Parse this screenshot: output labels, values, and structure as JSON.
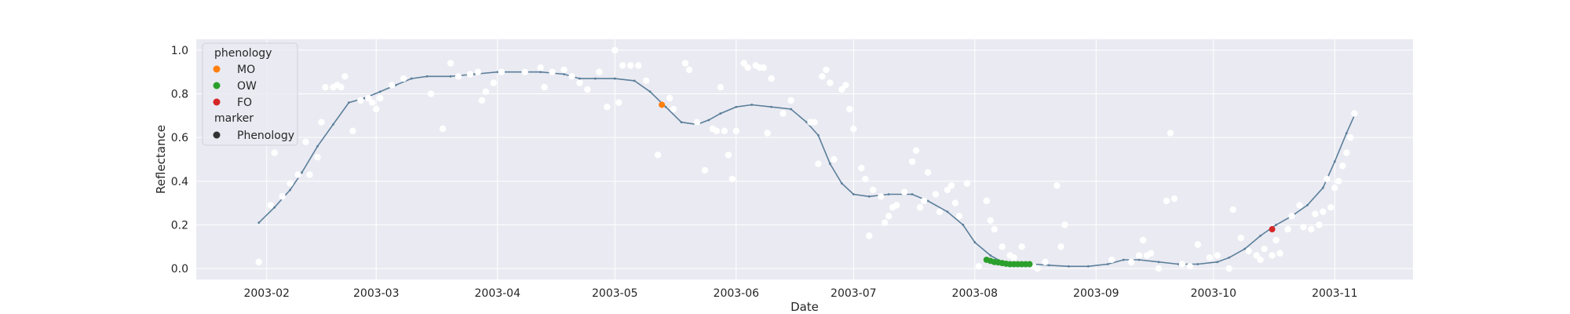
{
  "chart_data": {
    "type": "scatter",
    "title": "",
    "xlabel": "Date",
    "ylabel": "Reflectance",
    "xlim": [
      "2003-01-14",
      "2003-11-21"
    ],
    "ylim": [
      -0.05,
      1.05
    ],
    "x_ticks": [
      "2003-02-01",
      "2003-03-01",
      "2003-04-01",
      "2003-05-01",
      "2003-06-01",
      "2003-07-01",
      "2003-08-01",
      "2003-09-01",
      "2003-10-01",
      "2003-11-01"
    ],
    "x_tick_labels": [
      "2003-02",
      "2003-03",
      "2003-04",
      "2003-05",
      "2003-06",
      "2003-07",
      "2003-08",
      "2003-09",
      "2003-10",
      "2003-11"
    ],
    "y_ticks": [
      0.0,
      0.2,
      0.4,
      0.6,
      0.8,
      1.0
    ],
    "y_tick_labels": [
      "0.0",
      "0.2",
      "0.4",
      "0.6",
      "0.8",
      "1.0"
    ],
    "grid": true,
    "legend_placement": "top-left",
    "colors": {
      "background": "#eaeaf2",
      "grid": "#ffffff",
      "curve": "#5b7f9a",
      "observations": "#ffffff",
      "MO": "#ff7f0e",
      "OW": "#2ca02c",
      "FO": "#d62728",
      "marker": "#333333"
    },
    "legend": {
      "hue_title": "phenology",
      "hue_entries": [
        "MO",
        "OW",
        "FO"
      ],
      "style_title": "marker",
      "style_entries": [
        "Phenology"
      ]
    },
    "fitted_curve": {
      "name": "",
      "points": [
        [
          "2003-01-30",
          0.21
        ],
        [
          "2003-02-03",
          0.28
        ],
        [
          "2003-02-07",
          0.36
        ],
        [
          "2003-02-10",
          0.44
        ],
        [
          "2003-02-14",
          0.56
        ],
        [
          "2003-02-18",
          0.66
        ],
        [
          "2003-02-22",
          0.76
        ],
        [
          "2003-02-26",
          0.78
        ],
        [
          "2003-03-02",
          0.81
        ],
        [
          "2003-03-06",
          0.84
        ],
        [
          "2003-03-10",
          0.87
        ],
        [
          "2003-03-14",
          0.88
        ],
        [
          "2003-03-20",
          0.88
        ],
        [
          "2003-03-26",
          0.89
        ],
        [
          "2003-04-01",
          0.9
        ],
        [
          "2003-04-08",
          0.9
        ],
        [
          "2003-04-12",
          0.9
        ],
        [
          "2003-04-18",
          0.89
        ],
        [
          "2003-04-22",
          0.87
        ],
        [
          "2003-04-26",
          0.87
        ],
        [
          "2003-05-01",
          0.87
        ],
        [
          "2003-05-06",
          0.86
        ],
        [
          "2003-05-10",
          0.81
        ],
        [
          "2003-05-14",
          0.74
        ],
        [
          "2003-05-18",
          0.67
        ],
        [
          "2003-05-22",
          0.66
        ],
        [
          "2003-05-25",
          0.68
        ],
        [
          "2003-05-28",
          0.71
        ],
        [
          "2003-06-01",
          0.74
        ],
        [
          "2003-06-05",
          0.75
        ],
        [
          "2003-06-10",
          0.74
        ],
        [
          "2003-06-15",
          0.73
        ],
        [
          "2003-06-19",
          0.67
        ],
        [
          "2003-06-22",
          0.61
        ],
        [
          "2003-06-25",
          0.48
        ],
        [
          "2003-06-28",
          0.39
        ],
        [
          "2003-07-01",
          0.34
        ],
        [
          "2003-07-05",
          0.33
        ],
        [
          "2003-07-10",
          0.34
        ],
        [
          "2003-07-16",
          0.34
        ],
        [
          "2003-07-20",
          0.31
        ],
        [
          "2003-07-25",
          0.26
        ],
        [
          "2003-07-29",
          0.2
        ],
        [
          "2003-08-01",
          0.12
        ],
        [
          "2003-08-05",
          0.06
        ],
        [
          "2003-08-08",
          0.03
        ],
        [
          "2003-08-12",
          0.02
        ],
        [
          "2003-08-16",
          0.02
        ],
        [
          "2003-08-20",
          0.015
        ],
        [
          "2003-08-25",
          0.01
        ],
        [
          "2003-08-30",
          0.01
        ],
        [
          "2003-09-04",
          0.02
        ],
        [
          "2003-09-08",
          0.04
        ],
        [
          "2003-09-12",
          0.04
        ],
        [
          "2003-09-17",
          0.03
        ],
        [
          "2003-09-22",
          0.02
        ],
        [
          "2003-09-27",
          0.02
        ],
        [
          "2003-10-02",
          0.03
        ],
        [
          "2003-10-05",
          0.05
        ],
        [
          "2003-10-09",
          0.09
        ],
        [
          "2003-10-13",
          0.15
        ],
        [
          "2003-10-17",
          0.2
        ],
        [
          "2003-10-21",
          0.24
        ],
        [
          "2003-10-25",
          0.29
        ],
        [
          "2003-10-29",
          0.37
        ],
        [
          "2003-11-01",
          0.49
        ],
        [
          "2003-11-04",
          0.62
        ],
        [
          "2003-11-06",
          0.7
        ]
      ]
    },
    "observations": {
      "name": "",
      "points": [
        [
          "2003-01-30",
          0.03
        ],
        [
          "2003-02-02",
          0.29
        ],
        [
          "2003-02-03",
          0.53
        ],
        [
          "2003-02-05",
          0.33
        ],
        [
          "2003-02-07",
          0.39
        ],
        [
          "2003-02-09",
          0.43
        ],
        [
          "2003-02-11",
          0.58
        ],
        [
          "2003-02-12",
          0.43
        ],
        [
          "2003-02-14",
          0.51
        ],
        [
          "2003-02-15",
          0.67
        ],
        [
          "2003-02-16",
          0.83
        ],
        [
          "2003-02-18",
          0.83
        ],
        [
          "2003-02-19",
          0.84
        ],
        [
          "2003-02-20",
          0.83
        ],
        [
          "2003-02-21",
          0.88
        ],
        [
          "2003-02-23",
          0.63
        ],
        [
          "2003-02-25",
          0.77
        ],
        [
          "2003-02-27",
          0.78
        ],
        [
          "2003-02-28",
          0.76
        ],
        [
          "2003-03-01",
          0.73
        ],
        [
          "2003-03-02",
          0.78
        ],
        [
          "2003-03-05",
          0.84
        ],
        [
          "2003-03-08",
          0.87
        ],
        [
          "2003-03-15",
          0.8
        ],
        [
          "2003-03-18",
          0.64
        ],
        [
          "2003-03-20",
          0.94
        ],
        [
          "2003-03-22",
          0.88
        ],
        [
          "2003-03-25",
          0.89
        ],
        [
          "2003-03-27",
          0.9
        ],
        [
          "2003-03-28",
          0.77
        ],
        [
          "2003-03-29",
          0.81
        ],
        [
          "2003-03-31",
          0.85
        ],
        [
          "2003-04-02",
          0.9
        ],
        [
          "2003-04-08",
          0.9
        ],
        [
          "2003-04-12",
          0.92
        ],
        [
          "2003-04-13",
          0.83
        ],
        [
          "2003-04-15",
          0.9
        ],
        [
          "2003-04-18",
          0.91
        ],
        [
          "2003-04-20",
          0.88
        ],
        [
          "2003-04-22",
          0.85
        ],
        [
          "2003-04-24",
          0.82
        ],
        [
          "2003-04-27",
          0.9
        ],
        [
          "2003-04-29",
          0.74
        ],
        [
          "2003-05-01",
          1.0
        ],
        [
          "2003-05-02",
          0.76
        ],
        [
          "2003-05-03",
          0.93
        ],
        [
          "2003-05-05",
          0.93
        ],
        [
          "2003-05-07",
          0.93
        ],
        [
          "2003-05-09",
          0.86
        ],
        [
          "2003-05-12",
          0.52
        ],
        [
          "2003-05-15",
          0.78
        ],
        [
          "2003-05-16",
          0.73
        ],
        [
          "2003-05-19",
          0.94
        ],
        [
          "2003-05-20",
          0.91
        ],
        [
          "2003-05-22",
          0.67
        ],
        [
          "2003-05-24",
          0.45
        ],
        [
          "2003-05-26",
          0.64
        ],
        [
          "2003-05-27",
          0.63
        ],
        [
          "2003-05-28",
          0.83
        ],
        [
          "2003-05-29",
          0.63
        ],
        [
          "2003-05-30",
          0.52
        ],
        [
          "2003-05-31",
          0.41
        ],
        [
          "2003-06-01",
          0.63
        ],
        [
          "2003-06-03",
          0.94
        ],
        [
          "2003-06-04",
          0.92
        ],
        [
          "2003-06-06",
          0.93
        ],
        [
          "2003-06-07",
          0.92
        ],
        [
          "2003-06-08",
          0.92
        ],
        [
          "2003-06-09",
          0.62
        ],
        [
          "2003-06-10",
          0.87
        ],
        [
          "2003-06-13",
          0.71
        ],
        [
          "2003-06-15",
          0.77
        ],
        [
          "2003-06-20",
          0.67
        ],
        [
          "2003-06-21",
          0.67
        ],
        [
          "2003-06-22",
          0.48
        ],
        [
          "2003-06-23",
          0.88
        ],
        [
          "2003-06-24",
          0.91
        ],
        [
          "2003-06-25",
          0.85
        ],
        [
          "2003-06-26",
          0.5
        ],
        [
          "2003-06-28",
          0.82
        ],
        [
          "2003-06-29",
          0.84
        ],
        [
          "2003-06-30",
          0.73
        ],
        [
          "2003-07-01",
          0.64
        ],
        [
          "2003-07-03",
          0.46
        ],
        [
          "2003-07-04",
          0.41
        ],
        [
          "2003-07-05",
          0.15
        ],
        [
          "2003-07-06",
          0.36
        ],
        [
          "2003-07-08",
          0.33
        ],
        [
          "2003-07-09",
          0.21
        ],
        [
          "2003-07-10",
          0.24
        ],
        [
          "2003-07-11",
          0.28
        ],
        [
          "2003-07-12",
          0.29
        ],
        [
          "2003-07-14",
          0.35
        ],
        [
          "2003-07-16",
          0.49
        ],
        [
          "2003-07-17",
          0.54
        ],
        [
          "2003-07-18",
          0.28
        ],
        [
          "2003-07-19",
          0.31
        ],
        [
          "2003-07-20",
          0.44
        ],
        [
          "2003-07-22",
          0.34
        ],
        [
          "2003-07-23",
          0.26
        ],
        [
          "2003-07-25",
          0.36
        ],
        [
          "2003-07-26",
          0.38
        ],
        [
          "2003-07-27",
          0.3
        ],
        [
          "2003-07-28",
          0.24
        ],
        [
          "2003-07-30",
          0.39
        ],
        [
          "2003-08-02",
          0.01
        ],
        [
          "2003-08-04",
          0.31
        ],
        [
          "2003-08-05",
          0.22
        ],
        [
          "2003-08-06",
          0.18
        ],
        [
          "2003-08-08",
          0.1
        ],
        [
          "2003-08-10",
          0.06
        ],
        [
          "2003-08-11",
          0.05
        ],
        [
          "2003-08-13",
          0.1
        ],
        [
          "2003-08-16",
          0.01
        ],
        [
          "2003-08-17",
          0.0
        ],
        [
          "2003-08-19",
          0.03
        ],
        [
          "2003-08-22",
          0.38
        ],
        [
          "2003-08-23",
          0.1
        ],
        [
          "2003-08-24",
          0.2
        ],
        [
          "2003-09-05",
          0.04
        ],
        [
          "2003-09-10",
          0.03
        ],
        [
          "2003-09-12",
          0.06
        ],
        [
          "2003-09-13",
          0.13
        ],
        [
          "2003-09-14",
          0.06
        ],
        [
          "2003-09-15",
          0.07
        ],
        [
          "2003-09-17",
          0.0
        ],
        [
          "2003-09-19",
          0.31
        ],
        [
          "2003-09-20",
          0.62
        ],
        [
          "2003-09-21",
          0.32
        ],
        [
          "2003-09-23",
          0.02
        ],
        [
          "2003-09-25",
          0.01
        ],
        [
          "2003-09-27",
          0.11
        ],
        [
          "2003-09-30",
          0.05
        ],
        [
          "2003-10-02",
          0.06
        ],
        [
          "2003-10-05",
          0.0
        ],
        [
          "2003-10-06",
          0.27
        ],
        [
          "2003-10-08",
          0.14
        ],
        [
          "2003-10-10",
          0.08
        ],
        [
          "2003-10-12",
          0.06
        ],
        [
          "2003-10-13",
          0.04
        ],
        [
          "2003-10-14",
          0.09
        ],
        [
          "2003-10-16",
          0.06
        ],
        [
          "2003-10-17",
          0.13
        ],
        [
          "2003-10-18",
          0.07
        ],
        [
          "2003-10-20",
          0.18
        ],
        [
          "2003-10-21",
          0.24
        ],
        [
          "2003-10-23",
          0.29
        ],
        [
          "2003-10-24",
          0.19
        ],
        [
          "2003-10-26",
          0.18
        ],
        [
          "2003-10-27",
          0.25
        ],
        [
          "2003-10-28",
          0.2
        ],
        [
          "2003-10-29",
          0.26
        ],
        [
          "2003-10-30",
          0.41
        ],
        [
          "2003-10-31",
          0.28
        ],
        [
          "2003-11-01",
          0.37
        ],
        [
          "2003-11-02",
          0.4
        ],
        [
          "2003-11-03",
          0.47
        ],
        [
          "2003-11-04",
          0.53
        ],
        [
          "2003-11-05",
          0.6
        ],
        [
          "2003-11-06",
          0.71
        ]
      ]
    },
    "phenology": {
      "MO": [
        [
          "2003-05-13",
          0.75
        ]
      ],
      "OW": [
        [
          "2003-08-04",
          0.04
        ],
        [
          "2003-08-05",
          0.035
        ],
        [
          "2003-08-06",
          0.03
        ],
        [
          "2003-08-07",
          0.028
        ],
        [
          "2003-08-08",
          0.025
        ],
        [
          "2003-08-09",
          0.022
        ],
        [
          "2003-08-10",
          0.02
        ],
        [
          "2003-08-11",
          0.02
        ],
        [
          "2003-08-12",
          0.02
        ],
        [
          "2003-08-13",
          0.02
        ],
        [
          "2003-08-14",
          0.02
        ],
        [
          "2003-08-15",
          0.02
        ]
      ],
      "FO": [
        [
          "2003-10-16",
          0.18
        ]
      ]
    }
  }
}
